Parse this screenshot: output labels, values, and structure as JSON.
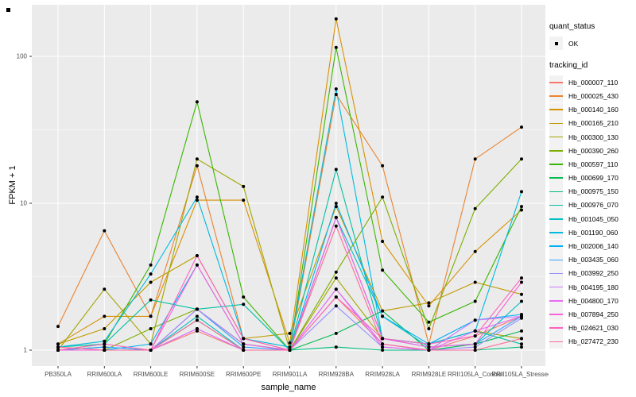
{
  "chart_data": {
    "type": "line",
    "title": "",
    "xlabel": "sample_name",
    "ylabel": "FPKM + 1",
    "y_scale": "log10",
    "ylim": [
      1,
      230
    ],
    "y_ticks": [
      1,
      10,
      100
    ],
    "y_minor_ticks": [
      3.162,
      31.62
    ],
    "grid": "on",
    "panel_bg": "#EBEBEB",
    "grid_color": "#FFFFFF",
    "point_color": "#000000",
    "legend_position": "right",
    "categories": [
      "PB350LA",
      "RRIM600LA",
      "RRIM600LE",
      "RRIM600SE",
      "RRIM600PE",
      "RRIM901LA",
      "RRIM928BA",
      "RRIM928LA",
      "RRIM928LE",
      "RRII105LA_Control",
      "RRII105LA_Stressed"
    ],
    "series": [
      {
        "name": "Hb_000007_110",
        "color": "#F8766D",
        "values": [
          1.0,
          1.0,
          1.0,
          1.35,
          1.0,
          1.0,
          2.3,
          1.1,
          1.0,
          1.25,
          1.7
        ]
      },
      {
        "name": "Hb_000025_430",
        "color": "#EA8331",
        "values": [
          1.45,
          6.5,
          1.7,
          18.0,
          1.2,
          1.0,
          55.0,
          18.0,
          1.1,
          20.0,
          33.0
        ]
      },
      {
        "name": "Hb_000140_160",
        "color": "#D89000",
        "values": [
          1.1,
          1.7,
          1.7,
          10.5,
          10.5,
          1.12,
          180.0,
          5.5,
          2.0,
          4.7,
          9.0
        ]
      },
      {
        "name": "Hb_000165_210",
        "color": "#C09B00",
        "values": [
          1.1,
          1.4,
          2.9,
          4.4,
          1.2,
          1.3,
          9.5,
          1.85,
          2.1,
          2.9,
          2.4
        ]
      },
      {
        "name": "Hb_000300_130",
        "color": "#A3A500",
        "values": [
          1.0,
          2.6,
          1.1,
          20.0,
          13.0,
          1.0,
          3.1,
          1.2,
          1.1,
          1.35,
          1.2
        ]
      },
      {
        "name": "Hb_000390_260",
        "color": "#7CAE00",
        "values": [
          1.0,
          1.0,
          1.4,
          1.9,
          1.1,
          1.0,
          3.4,
          11.0,
          1.4,
          9.2,
          20.0
        ]
      },
      {
        "name": "Hb_000597_110",
        "color": "#39B600",
        "values": [
          1.0,
          1.1,
          3.8,
          49.0,
          2.3,
          1.0,
          115.0,
          3.5,
          1.55,
          2.15,
          9.5
        ]
      },
      {
        "name": "Hb_000699_170",
        "color": "#00BB4E",
        "values": [
          1.0,
          1.0,
          1.0,
          1.9,
          1.1,
          1.0,
          1.3,
          1.85,
          1.0,
          1.1,
          1.35
        ]
      },
      {
        "name": "Hb_000975_150",
        "color": "#00BF7D",
        "values": [
          1.0,
          1.0,
          1.0,
          1.6,
          1.0,
          1.0,
          1.05,
          1.0,
          1.0,
          1.0,
          1.05
        ]
      },
      {
        "name": "Hb_000976_070",
        "color": "#00C1A3",
        "values": [
          1.05,
          1.1,
          2.2,
          1.9,
          2.05,
          1.0,
          17.0,
          1.2,
          1.1,
          1.35,
          1.1
        ]
      },
      {
        "name": "Hb_001045_050",
        "color": "#00BFC4",
        "values": [
          1.0,
          1.05,
          1.0,
          1.7,
          1.0,
          1.0,
          8.0,
          1.7,
          1.05,
          1.1,
          2.15
        ]
      },
      {
        "name": "Hb_001190_060",
        "color": "#00BAE0",
        "values": [
          1.05,
          1.15,
          3.3,
          11.0,
          1.2,
          1.05,
          60.0,
          1.2,
          1.1,
          1.35,
          12.0
        ]
      },
      {
        "name": "Hb_002006_140",
        "color": "#00B0F6",
        "values": [
          1.0,
          1.0,
          1.1,
          3.8,
          1.1,
          1.0,
          10.0,
          1.7,
          1.1,
          1.6,
          1.75
        ]
      },
      {
        "name": "Hb_003435_060",
        "color": "#35A2FF",
        "values": [
          1.0,
          1.05,
          1.0,
          1.9,
          1.05,
          1.0,
          8.0,
          1.2,
          1.05,
          1.1,
          1.7
        ]
      },
      {
        "name": "Hb_003992_250",
        "color": "#9590FF",
        "values": [
          1.0,
          1.0,
          1.0,
          1.4,
          1.0,
          1.0,
          2.0,
          1.05,
          1.0,
          1.05,
          1.65
        ]
      },
      {
        "name": "Hb_004195_180",
        "color": "#C77CFF",
        "values": [
          1.0,
          1.0,
          1.0,
          1.9,
          1.1,
          1.0,
          2.6,
          1.1,
          1.0,
          1.6,
          1.7
        ]
      },
      {
        "name": "Hb_004800_170",
        "color": "#E76BF3",
        "values": [
          1.0,
          1.0,
          1.0,
          1.4,
          1.0,
          1.0,
          2.6,
          1.05,
          1.0,
          1.35,
          1.7
        ]
      },
      {
        "name": "Hb_007894_250",
        "color": "#FA62DB",
        "values": [
          1.0,
          1.0,
          1.0,
          3.8,
          1.1,
          1.0,
          8.0,
          1.2,
          1.05,
          1.1,
          2.9
        ]
      },
      {
        "name": "Hb_024621_030",
        "color": "#FF62BC",
        "values": [
          1.0,
          1.1,
          1.0,
          4.4,
          1.2,
          1.0,
          2.3,
          1.2,
          1.1,
          1.25,
          3.1
        ]
      },
      {
        "name": "Hb_027472_230",
        "color": "#FF6A98",
        "values": [
          1.05,
          1.0,
          1.0,
          1.6,
          1.0,
          1.0,
          7.0,
          1.1,
          1.0,
          1.0,
          1.2
        ]
      }
    ],
    "legend": {
      "quant_status_title": "quant_status",
      "quant_status_ok": "OK",
      "tracking_id_title": "tracking_id"
    }
  }
}
